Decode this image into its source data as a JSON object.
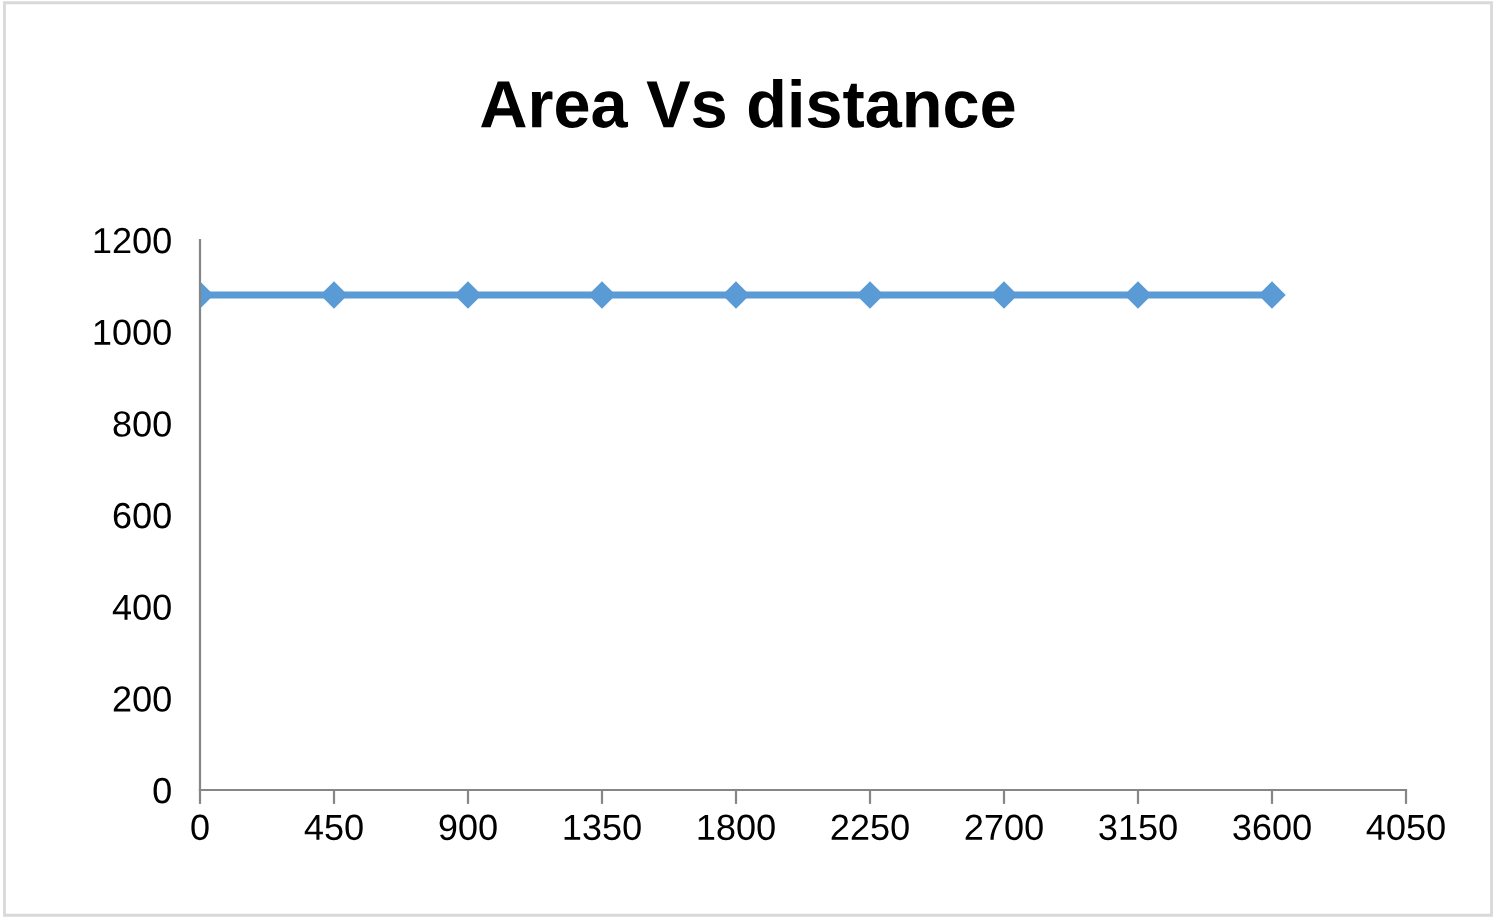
{
  "chart_data": {
    "type": "line",
    "title": "Area Vs distance",
    "x": [
      0,
      450,
      900,
      1350,
      1800,
      2250,
      2700,
      3150,
      3600
    ],
    "series": [
      {
        "color": "#5b9bd5",
        "values": [
          1080,
          1080,
          1080,
          1080,
          1080,
          1080,
          1080,
          1080,
          1080
        ]
      }
    ],
    "xlim": [
      0,
      4050
    ],
    "xticks": [
      0,
      450,
      900,
      1350,
      1800,
      2250,
      2700,
      3150,
      3600,
      4050
    ],
    "ylim": [
      0,
      1200
    ],
    "yticks": [
      0,
      200,
      400,
      600,
      800,
      1000,
      1200
    ],
    "grid": false,
    "legend": false,
    "marker": "diamond",
    "line_style": "solid"
  }
}
